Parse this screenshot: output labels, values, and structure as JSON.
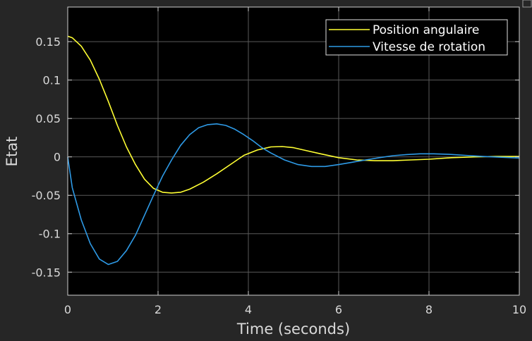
{
  "chart_data": {
    "type": "line",
    "title": "",
    "xlabel": "Time (seconds)",
    "ylabel": "Etat",
    "xlim": [
      0,
      10
    ],
    "ylim": [
      -0.18,
      0.195
    ],
    "xticks": [
      0,
      2,
      4,
      6,
      8,
      10
    ],
    "xtick_labels": [
      "0",
      "2",
      "4",
      "6",
      "8",
      "10"
    ],
    "yticks": [
      -0.15,
      -0.1,
      -0.05,
      0,
      0.05,
      0.1,
      0.15
    ],
    "ytick_labels": [
      "-0.15",
      "-0.1",
      "-0.05",
      "0",
      "0.05",
      "0.1",
      "0.15"
    ],
    "grid": true,
    "legend_position": "top-right",
    "background_color": "#000000",
    "figure_color": "#262626",
    "grid_color": "#5a5a5a",
    "series": [
      {
        "name": "Position angulaire",
        "color": "#ffff33",
        "x": [
          0,
          0.1,
          0.3,
          0.5,
          0.7,
          0.9,
          1.1,
          1.3,
          1.5,
          1.7,
          1.9,
          2.1,
          2.3,
          2.5,
          2.7,
          3.0,
          3.3,
          3.6,
          3.9,
          4.2,
          4.5,
          4.75,
          5.0,
          5.3,
          5.6,
          6.0,
          6.4,
          6.8,
          7.2,
          7.6,
          8.0,
          8.5,
          9.0,
          9.5,
          10.0
        ],
        "y": [
          0.157,
          0.155,
          0.144,
          0.126,
          0.101,
          0.072,
          0.041,
          0.013,
          -0.01,
          -0.029,
          -0.041,
          -0.046,
          -0.047,
          -0.046,
          -0.042,
          -0.033,
          -0.022,
          -0.01,
          0.002,
          0.009,
          0.013,
          0.0135,
          0.012,
          0.008,
          0.004,
          -0.001,
          -0.004,
          -0.005,
          -0.005,
          -0.004,
          -0.003,
          -0.001,
          0.0,
          0.0005,
          0.0005
        ]
      },
      {
        "name": "Vitesse de rotation",
        "color": "#2e9ae6",
        "x": [
          0,
          0.1,
          0.3,
          0.5,
          0.7,
          0.9,
          1.1,
          1.3,
          1.5,
          1.7,
          1.9,
          2.1,
          2.3,
          2.5,
          2.7,
          2.9,
          3.1,
          3.3,
          3.5,
          3.7,
          3.9,
          4.1,
          4.3,
          4.5,
          4.8,
          5.1,
          5.4,
          5.7,
          6.0,
          6.3,
          6.6,
          6.9,
          7.2,
          7.5,
          7.8,
          8.1,
          8.4,
          8.8,
          9.2,
          9.6,
          10.0
        ],
        "y": [
          0.0,
          -0.04,
          -0.082,
          -0.113,
          -0.133,
          -0.14,
          -0.136,
          -0.122,
          -0.102,
          -0.076,
          -0.05,
          -0.025,
          -0.004,
          0.015,
          0.029,
          0.038,
          0.042,
          0.043,
          0.041,
          0.036,
          0.029,
          0.021,
          0.012,
          0.005,
          -0.004,
          -0.01,
          -0.0125,
          -0.0125,
          -0.01,
          -0.007,
          -0.004,
          -0.001,
          0.0015,
          0.003,
          0.004,
          0.004,
          0.0035,
          0.002,
          0.0005,
          -0.0005,
          -0.0015
        ]
      }
    ]
  }
}
